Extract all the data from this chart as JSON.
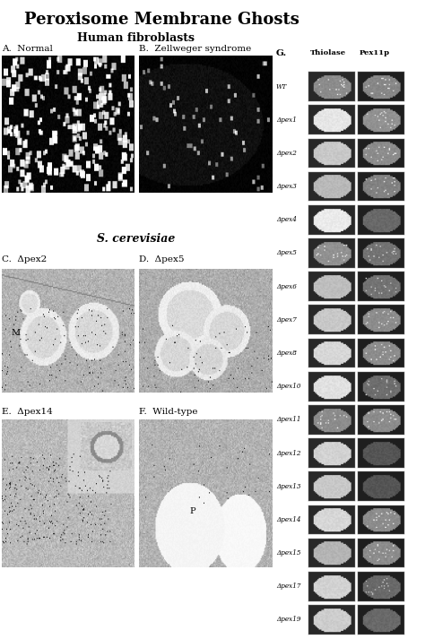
{
  "title": "Peroxisome Membrane Ghosts",
  "title_fontsize": 13,
  "title_fontweight": "bold",
  "bg_color": "#ffffff",
  "section_A_label": "Human fibroblasts",
  "section_B_label": "S. cerevisiae",
  "panel_labels": [
    "A.  Normal",
    "B.  Zellweger syndrome",
    "C.  Δpex2",
    "D.  Δpex5",
    "E.  Δpex14",
    "F.  Wild-type"
  ],
  "G_label": "G.",
  "col_headers": [
    "Thiolase",
    "Pex11p"
  ],
  "row_labels": [
    "WT",
    "Δpex1",
    "Δpex2",
    "Δpex3",
    "Δpex4",
    "Δpex5",
    "Δpex6",
    "Δpex7",
    "Δpex8",
    "Δpex10",
    "Δpex11",
    "Δpex12",
    "Δpex13",
    "Δpex14",
    "Δpex15",
    "Δpex17",
    "Δpex19"
  ],
  "thiolase_brightness": [
    140,
    230,
    200,
    185,
    235,
    145,
    190,
    200,
    215,
    225,
    140,
    210,
    200,
    215,
    180,
    210,
    205
  ],
  "thiolase_spotty": [
    true,
    false,
    false,
    false,
    false,
    true,
    false,
    false,
    false,
    false,
    true,
    false,
    false,
    false,
    false,
    false,
    false
  ],
  "pex11p_brightness": [
    135,
    145,
    140,
    130,
    105,
    115,
    115,
    140,
    140,
    110,
    140,
    85,
    85,
    140,
    140,
    105,
    105
  ],
  "pex11p_spotty": [
    true,
    true,
    true,
    true,
    false,
    true,
    true,
    true,
    true,
    true,
    true,
    false,
    false,
    true,
    true,
    true,
    false
  ]
}
